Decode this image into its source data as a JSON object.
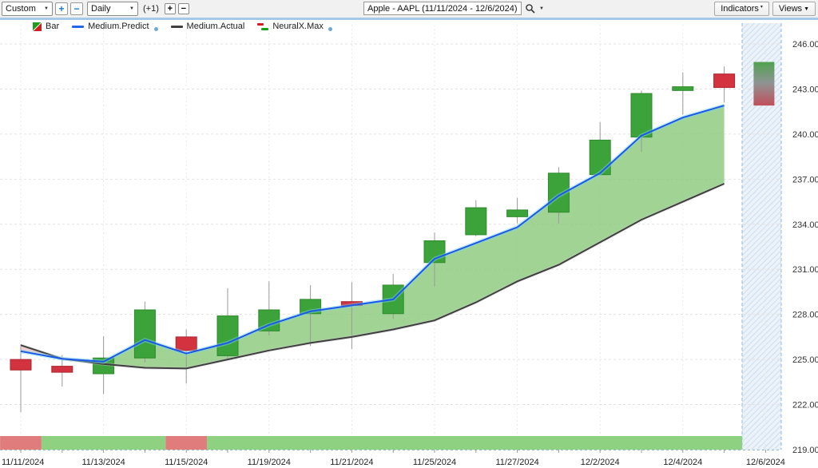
{
  "toolbar": {
    "range_value": "Custom",
    "zoom_in_label": "+",
    "zoom_out_label": "−",
    "period_value": "Daily",
    "plus_one_label": "(+1)",
    "add_bar_label": "+",
    "remove_bar_label": "−",
    "symbol_value": "Apple - AAPL (11/11/2024 - 12/6/2024)",
    "indicators_label": "Indicators",
    "views_label": "Views"
  },
  "legend": {
    "items": [
      {
        "label": "Bar"
      },
      {
        "label": "Medium.Predict"
      },
      {
        "label": "Medium.Actual"
      },
      {
        "label": "NeuralX.Max"
      }
    ]
  },
  "chart_data": {
    "type": "candlestick",
    "title": "Apple - AAPL (11/11/2024 - 12/6/2024)",
    "ylim": [
      219,
      246
    ],
    "y_ticks": [
      246,
      243,
      240,
      237,
      234,
      231,
      228,
      225,
      222,
      219
    ],
    "x_tick_labels": [
      "11/11/2024",
      "11/13/2024",
      "11/15/2024",
      "11/19/2024",
      "11/21/2024",
      "11/25/2024",
      "11/27/2024",
      "12/2/2024",
      "12/4/2024",
      "12/6/2024"
    ],
    "x_tick_indices": [
      0,
      2,
      4,
      6,
      8,
      10,
      12,
      14,
      16,
      18
    ],
    "dates": [
      "11/11/2024",
      "11/12/2024",
      "11/13/2024",
      "11/14/2024",
      "11/15/2024",
      "11/18/2024",
      "11/19/2024",
      "11/20/2024",
      "11/21/2024",
      "11/22/2024",
      "11/25/2024",
      "11/26/2024",
      "11/27/2024",
      "11/29/2024",
      "12/2/2024",
      "12/3/2024",
      "12/4/2024",
      "12/5/2024"
    ],
    "candles_ohlc": [
      [
        225.0,
        226.0,
        221.5,
        224.3
      ],
      [
        224.55,
        225.3,
        223.2,
        224.15
      ],
      [
        224.05,
        226.55,
        222.7,
        225.1
      ],
      [
        225.1,
        228.85,
        224.8,
        228.3
      ],
      [
        226.5,
        227.0,
        223.4,
        225.6
      ],
      [
        225.25,
        229.75,
        225.0,
        227.9
      ],
      [
        226.9,
        230.2,
        226.6,
        228.3
      ],
      [
        228.05,
        229.95,
        225.9,
        229.0
      ],
      [
        228.85,
        230.15,
        225.7,
        228.6
      ],
      [
        228.05,
        230.7,
        227.7,
        229.95
      ],
      [
        231.45,
        233.45,
        229.85,
        232.9
      ],
      [
        233.3,
        235.6,
        233.2,
        235.1
      ],
      [
        234.5,
        235.75,
        234.05,
        234.95
      ],
      [
        234.8,
        237.8,
        234.05,
        237.4
      ],
      [
        237.3,
        240.8,
        237.25,
        239.6
      ],
      [
        239.8,
        242.9,
        238.8,
        242.7
      ],
      [
        242.9,
        244.1,
        241.3,
        243.15
      ],
      [
        244.0,
        244.5,
        242.1,
        243.1
      ]
    ],
    "series": [
      {
        "name": "Medium.Predict",
        "color": "#1b59e6",
        "values": [
          225.55,
          225.05,
          224.85,
          226.3,
          225.4,
          226.1,
          227.3,
          228.2,
          228.6,
          229.0,
          231.7,
          232.75,
          233.8,
          235.9,
          237.4,
          239.9,
          241.1,
          241.9
        ]
      },
      {
        "name": "Medium.Actual",
        "color": "#3f3f3f",
        "values": [
          225.95,
          225.05,
          224.7,
          224.45,
          224.4,
          225.0,
          225.6,
          226.1,
          226.5,
          227.0,
          227.6,
          228.8,
          230.2,
          231.3,
          232.8,
          234.3,
          235.5,
          236.7
        ]
      }
    ],
    "band": {
      "name": "NeuralX.Max",
      "above_color": "#8cca7d",
      "below_color": "#efc3c6"
    },
    "forecast": {
      "date": "12/6/2024",
      "high": 244.8,
      "low": 241.9,
      "top_color": "#4fa24f",
      "mid_color": "#8f9494",
      "bottom_color": "#c14f5b"
    },
    "sentiment_strip": [
      {
        "from": 0,
        "to": 1,
        "color": "#e07c7c"
      },
      {
        "from": 1,
        "to": 4,
        "color": "#8ed181"
      },
      {
        "from": 4,
        "to": 5,
        "color": "#e07c7c"
      },
      {
        "from": 5,
        "to": 18,
        "color": "#8ed181"
      }
    ],
    "colors": {
      "up": "#3ca33a",
      "up_border": "#2f8a2d",
      "down": "#d2333f",
      "down_border": "#ab2630",
      "wick": "#999999",
      "grid": "#e3e3e3",
      "hatch_bg": "#ecf2f9",
      "hatch_line": "#cdddf0",
      "axis_dash": "#8fb6dd"
    }
  }
}
